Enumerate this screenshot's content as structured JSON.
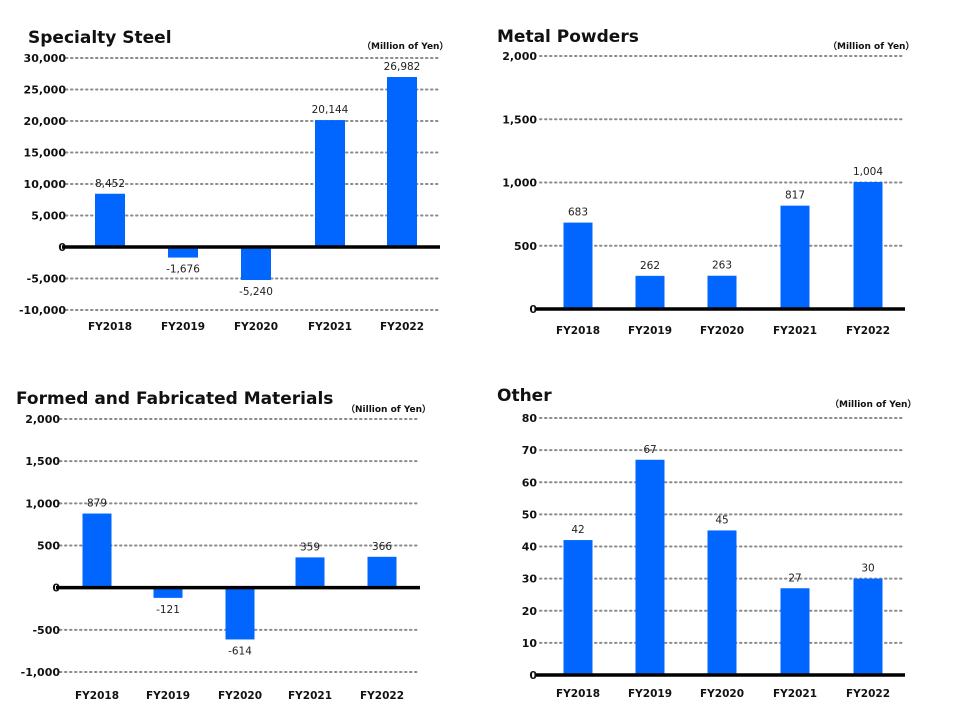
{
  "chart_data": [
    {
      "type": "bar",
      "title": "Specialty Steel",
      "unit_label": "（Million of Yen）",
      "categories": [
        "FY2018",
        "FY2019",
        "FY2020",
        "FY2021",
        "FY2022"
      ],
      "values": [
        8452,
        -1676,
        -5240,
        20144,
        26982
      ],
      "data_labels": [
        "8,452",
        "-1,676",
        "-5,240",
        "20,144",
        "26,982"
      ],
      "ylim": [
        -10000,
        30000
      ],
      "yticks": [
        -10000,
        -5000,
        0,
        5000,
        10000,
        15000,
        20000,
        25000,
        30000
      ],
      "ytick_labels": [
        "-10,000",
        "-5,000",
        "0",
        "5,000",
        "10,000",
        "15,000",
        "20,000",
        "25,000",
        "30,000"
      ],
      "grid": true,
      "bar_color": "#0066ff"
    },
    {
      "type": "bar",
      "title": "Metal Powders",
      "unit_label": "（Million of Yen）",
      "categories": [
        "FY2018",
        "FY2019",
        "FY2020",
        "FY2021",
        "FY2022"
      ],
      "values": [
        683,
        262,
        263,
        817,
        1004
      ],
      "data_labels": [
        "683",
        "262",
        "263",
        "817",
        "1,004"
      ],
      "ylim": [
        0,
        2000
      ],
      "yticks": [
        0,
        500,
        1000,
        1500,
        2000
      ],
      "ytick_labels": [
        "0",
        "500",
        "1,000",
        "1,500",
        "2,000"
      ],
      "grid": true,
      "bar_color": "#0066ff"
    },
    {
      "type": "bar",
      "title": "Formed and Fabricated Materials",
      "unit_label": "（Nillion of Yen）",
      "categories": [
        "FY2018",
        "FY2019",
        "FY2020",
        "FY2021",
        "FY2022"
      ],
      "values": [
        879,
        -121,
        -614,
        359,
        366
      ],
      "data_labels": [
        "879",
        "-121",
        "-614",
        "359",
        "366"
      ],
      "ylim": [
        -1000,
        2000
      ],
      "yticks": [
        -1000,
        -500,
        0,
        500,
        1000,
        1500,
        2000
      ],
      "ytick_labels": [
        "-1,000",
        "-500",
        "0",
        "500",
        "1,000",
        "1,500",
        "2,000"
      ],
      "grid": true,
      "bar_color": "#0066ff"
    },
    {
      "type": "bar",
      "title": "Other",
      "unit_label": "（Million of Yen）",
      "categories": [
        "FY2018",
        "FY2019",
        "FY2020",
        "FY2021",
        "FY2022"
      ],
      "values": [
        42,
        67,
        45,
        27,
        30
      ],
      "data_labels": [
        "42",
        "67",
        "45",
        "27",
        "30"
      ],
      "ylim": [
        0,
        80
      ],
      "yticks": [
        0,
        10,
        20,
        30,
        40,
        50,
        60,
        70,
        80
      ],
      "ytick_labels": [
        "0",
        "10",
        "20",
        "30",
        "40",
        "50",
        "60",
        "70",
        "80"
      ],
      "grid": true,
      "bar_color": "#0066ff"
    }
  ]
}
